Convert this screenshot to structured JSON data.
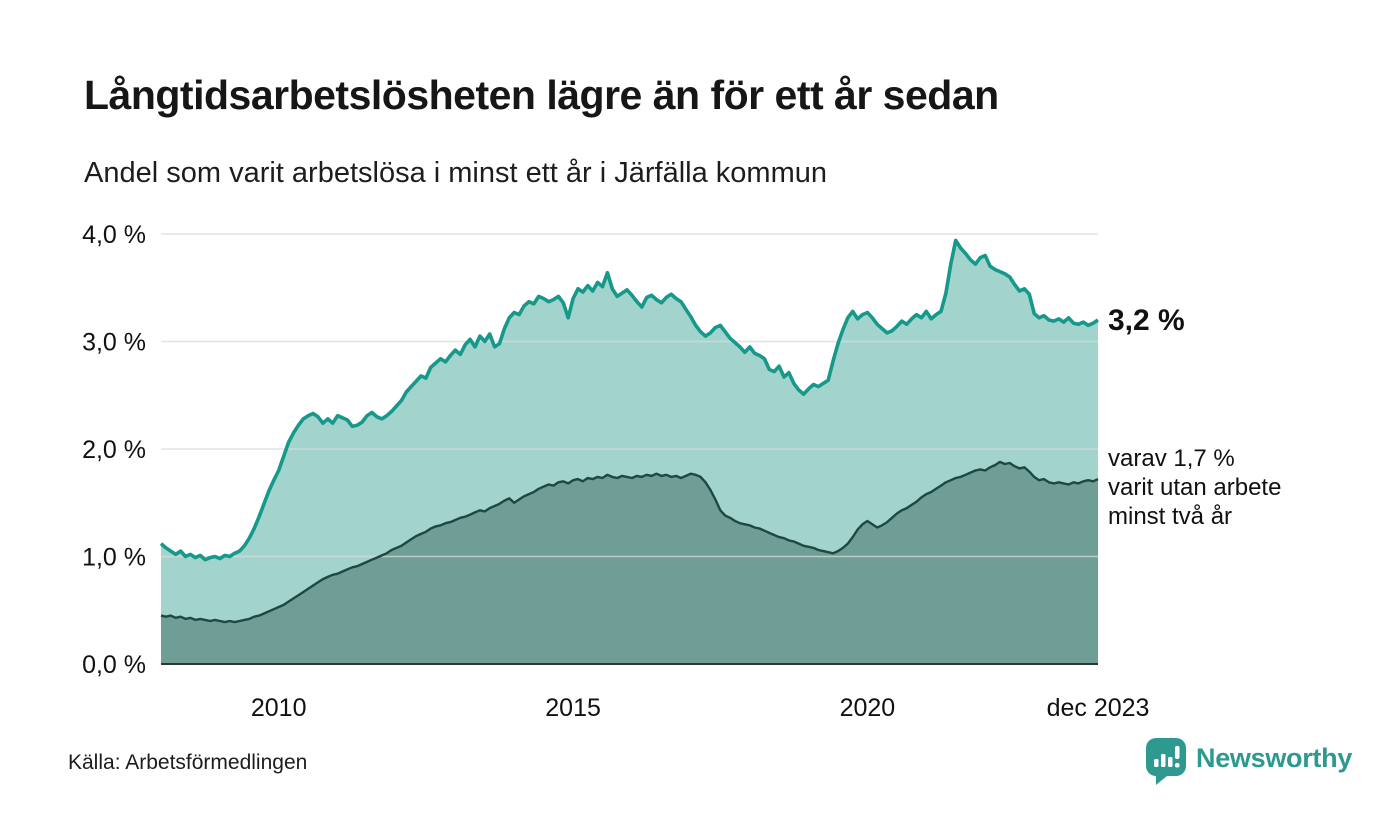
{
  "header": {
    "title": "Långtidsarbetslösheten lägre än för ett år sedan",
    "subtitle": "Andel som varit arbetslösa i minst ett år i Järfälla kommun"
  },
  "annotations": {
    "latest_total": "3,2 %",
    "subseries_line1": "varav 1,7 %",
    "subseries_line2": "varit utan arbete",
    "subseries_line3": "minst två år"
  },
  "footer": {
    "source": "Källa: Arbetsförmedlingen",
    "brand": "Newsworthy"
  },
  "colors": {
    "total_line": "#16988b",
    "total_fill": "#a2d4cd",
    "two_year_line": "#1e4842",
    "two_year_fill": "#6f9e97",
    "gridline": "#d7dbd9",
    "axis": "#333333",
    "brand_teal": "#2e9a8f",
    "text": "#111111"
  },
  "chart_data": {
    "type": "area",
    "title": "Långtidsarbetslösheten lägre än för ett år sedan",
    "subtitle": "Andel som varit arbetslösa i minst ett år i Järfälla kommun",
    "x_unit": "month",
    "start_year": 2008,
    "frequency_per_year": 12,
    "ylim": [
      0,
      4
    ],
    "grid": true,
    "legend_position": "right-annotations",
    "y_ticks": [
      {
        "value": 0,
        "label": "0,0 %"
      },
      {
        "value": 1,
        "label": "1,0 %"
      },
      {
        "value": 2,
        "label": "2,0 %"
      },
      {
        "value": 3,
        "label": "3,0 %"
      },
      {
        "value": 4,
        "label": "4,0 %"
      }
    ],
    "x_ticks": [
      {
        "value": 2010,
        "label": "2010"
      },
      {
        "value": 2015,
        "label": "2015"
      },
      {
        "value": 2020,
        "label": "2020"
      },
      {
        "value": 2023.917,
        "label": "dec 2023"
      }
    ],
    "series": [
      {
        "name": "Andel arbetslösa minst ett år",
        "last_value_label": "3,2 %",
        "line_color": "#16988b",
        "fill_color": "#a2d4cd",
        "values": [
          1.12,
          1.08,
          1.05,
          1.02,
          1.05,
          1.0,
          1.02,
          0.99,
          1.01,
          0.97,
          0.99,
          1.0,
          0.98,
          1.01,
          1.0,
          1.03,
          1.05,
          1.1,
          1.17,
          1.26,
          1.37,
          1.49,
          1.61,
          1.71,
          1.8,
          1.93,
          2.06,
          2.15,
          2.22,
          2.28,
          2.31,
          2.33,
          2.3,
          2.24,
          2.28,
          2.24,
          2.31,
          2.29,
          2.27,
          2.21,
          2.22,
          2.25,
          2.31,
          2.34,
          2.3,
          2.28,
          2.31,
          2.35,
          2.4,
          2.45,
          2.53,
          2.58,
          2.63,
          2.68,
          2.66,
          2.76,
          2.8,
          2.84,
          2.81,
          2.87,
          2.92,
          2.88,
          2.97,
          3.02,
          2.95,
          3.05,
          3.0,
          3.07,
          2.95,
          2.98,
          3.12,
          3.22,
          3.27,
          3.25,
          3.33,
          3.37,
          3.35,
          3.42,
          3.4,
          3.37,
          3.39,
          3.42,
          3.36,
          3.22,
          3.4,
          3.49,
          3.46,
          3.52,
          3.47,
          3.55,
          3.51,
          3.64,
          3.49,
          3.42,
          3.45,
          3.48,
          3.43,
          3.37,
          3.32,
          3.41,
          3.43,
          3.39,
          3.36,
          3.41,
          3.44,
          3.4,
          3.37,
          3.3,
          3.23,
          3.15,
          3.09,
          3.05,
          3.08,
          3.13,
          3.15,
          3.09,
          3.03,
          2.99,
          2.95,
          2.9,
          2.95,
          2.89,
          2.87,
          2.84,
          2.74,
          2.72,
          2.77,
          2.67,
          2.71,
          2.61,
          2.55,
          2.51,
          2.56,
          2.6,
          2.58,
          2.61,
          2.64,
          2.82,
          2.98,
          3.11,
          3.22,
          3.28,
          3.21,
          3.25,
          3.27,
          3.22,
          3.16,
          3.12,
          3.08,
          3.1,
          3.14,
          3.19,
          3.16,
          3.21,
          3.25,
          3.22,
          3.28,
          3.21,
          3.25,
          3.28,
          3.45,
          3.72,
          3.94,
          3.87,
          3.82,
          3.76,
          3.72,
          3.78,
          3.8,
          3.7,
          3.67,
          3.65,
          3.63,
          3.6,
          3.53,
          3.47,
          3.49,
          3.44,
          3.26,
          3.22,
          3.24,
          3.2,
          3.19,
          3.21,
          3.18,
          3.22,
          3.17,
          3.16,
          3.18,
          3.15,
          3.17,
          3.2
        ]
      },
      {
        "name": "varav arbetslösa minst två år",
        "last_value_label": "1,7 %",
        "line_color": "#1e4842",
        "fill_color": "#6f9e97",
        "values": [
          0.45,
          0.44,
          0.45,
          0.43,
          0.44,
          0.42,
          0.43,
          0.41,
          0.42,
          0.41,
          0.4,
          0.41,
          0.4,
          0.39,
          0.4,
          0.39,
          0.4,
          0.41,
          0.42,
          0.44,
          0.45,
          0.47,
          0.49,
          0.51,
          0.53,
          0.55,
          0.58,
          0.61,
          0.64,
          0.67,
          0.7,
          0.73,
          0.76,
          0.79,
          0.81,
          0.83,
          0.84,
          0.86,
          0.88,
          0.9,
          0.91,
          0.93,
          0.95,
          0.97,
          0.99,
          1.01,
          1.03,
          1.06,
          1.08,
          1.1,
          1.13,
          1.16,
          1.19,
          1.21,
          1.23,
          1.26,
          1.28,
          1.29,
          1.31,
          1.32,
          1.34,
          1.36,
          1.37,
          1.39,
          1.41,
          1.43,
          1.42,
          1.45,
          1.47,
          1.49,
          1.52,
          1.54,
          1.5,
          1.53,
          1.56,
          1.58,
          1.6,
          1.63,
          1.65,
          1.67,
          1.66,
          1.69,
          1.7,
          1.68,
          1.71,
          1.72,
          1.7,
          1.73,
          1.72,
          1.74,
          1.73,
          1.76,
          1.74,
          1.73,
          1.75,
          1.74,
          1.73,
          1.75,
          1.74,
          1.76,
          1.75,
          1.77,
          1.75,
          1.76,
          1.74,
          1.75,
          1.73,
          1.75,
          1.77,
          1.76,
          1.74,
          1.69,
          1.62,
          1.53,
          1.43,
          1.38,
          1.36,
          1.33,
          1.31,
          1.3,
          1.29,
          1.27,
          1.26,
          1.24,
          1.22,
          1.2,
          1.18,
          1.17,
          1.15,
          1.14,
          1.12,
          1.1,
          1.09,
          1.08,
          1.06,
          1.05,
          1.04,
          1.03,
          1.05,
          1.08,
          1.12,
          1.18,
          1.25,
          1.3,
          1.33,
          1.3,
          1.27,
          1.29,
          1.32,
          1.36,
          1.4,
          1.43,
          1.45,
          1.48,
          1.51,
          1.55,
          1.58,
          1.6,
          1.63,
          1.66,
          1.69,
          1.71,
          1.73,
          1.74,
          1.76,
          1.78,
          1.8,
          1.81,
          1.8,
          1.83,
          1.85,
          1.88,
          1.86,
          1.87,
          1.84,
          1.82,
          1.83,
          1.79,
          1.74,
          1.71,
          1.72,
          1.69,
          1.68,
          1.69,
          1.68,
          1.67,
          1.69,
          1.68,
          1.7,
          1.71,
          1.7,
          1.72
        ]
      }
    ]
  }
}
